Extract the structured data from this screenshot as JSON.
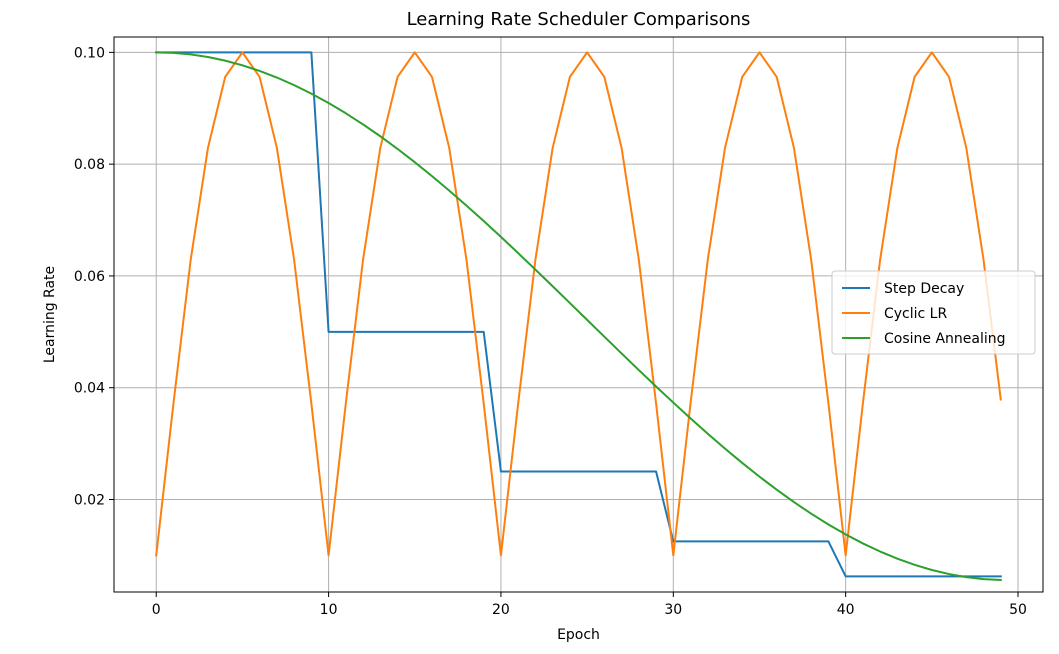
{
  "chart_data": {
    "type": "line",
    "title": "Learning Rate Scheduler Comparisons",
    "xlabel": "Epoch",
    "ylabel": "Learning Rate",
    "xlim": [
      -2.45,
      51.45
    ],
    "ylim": [
      0.00345,
      0.10275
    ],
    "xticks": [
      0,
      10,
      20,
      30,
      40,
      50
    ],
    "xtick_labels": [
      "0",
      "10",
      "20",
      "30",
      "40",
      "50"
    ],
    "yticks": [
      0.02,
      0.04,
      0.06,
      0.08,
      0.1
    ],
    "ytick_labels": [
      "0.02",
      "0.04",
      "0.06",
      "0.08",
      "0.10"
    ],
    "grid": true,
    "legend_position": "center-right",
    "x": [
      0,
      1,
      2,
      3,
      4,
      5,
      6,
      7,
      8,
      9,
      10,
      11,
      12,
      13,
      14,
      15,
      16,
      17,
      18,
      19,
      20,
      21,
      22,
      23,
      24,
      25,
      26,
      27,
      28,
      29,
      30,
      31,
      32,
      33,
      34,
      35,
      36,
      37,
      38,
      39,
      40,
      41,
      42,
      43,
      44,
      45,
      46,
      47,
      48,
      49
    ],
    "series": [
      {
        "name": "Step Decay",
        "color": "#1f77b4",
        "values": [
          0.1,
          0.1,
          0.1,
          0.1,
          0.1,
          0.1,
          0.1,
          0.1,
          0.1,
          0.1,
          0.05,
          0.05,
          0.05,
          0.05,
          0.05,
          0.05,
          0.05,
          0.05,
          0.05,
          0.05,
          0.025,
          0.025,
          0.025,
          0.025,
          0.025,
          0.025,
          0.025,
          0.025,
          0.025,
          0.025,
          0.0125,
          0.0125,
          0.0125,
          0.0125,
          0.0125,
          0.0125,
          0.0125,
          0.0125,
          0.0125,
          0.0125,
          0.00625,
          0.00625,
          0.00625,
          0.00625,
          0.00625,
          0.00625,
          0.00625,
          0.00625,
          0.00625,
          0.00625
        ]
      },
      {
        "name": "Cyclic LR",
        "color": "#ff7f0e",
        "values": [
          0.01,
          0.0372,
          0.0629,
          0.0829,
          0.0956,
          0.1,
          0.0956,
          0.0829,
          0.0629,
          0.0372,
          0.01,
          0.0372,
          0.0629,
          0.0829,
          0.0956,
          0.1,
          0.0956,
          0.0829,
          0.0629,
          0.0372,
          0.01,
          0.0372,
          0.0629,
          0.0829,
          0.0956,
          0.1,
          0.0956,
          0.0829,
          0.0629,
          0.0372,
          0.01,
          0.0372,
          0.0629,
          0.0829,
          0.0956,
          0.1,
          0.0956,
          0.0829,
          0.0629,
          0.0372,
          0.01,
          0.0372,
          0.0629,
          0.0829,
          0.0956,
          0.1,
          0.0956,
          0.0829,
          0.0629,
          0.0379
        ]
      },
      {
        "name": "Cosine Annealing",
        "color": "#2ca02c",
        "values": [
          0.1,
          0.09991,
          0.09963,
          0.09917,
          0.09852,
          0.09769,
          0.09668,
          0.0955,
          0.09414,
          0.09262,
          0.09094,
          0.0891,
          0.08711,
          0.08499,
          0.08273,
          0.08035,
          0.07786,
          0.07527,
          0.07258,
          0.06982,
          0.06698,
          0.06408,
          0.06113,
          0.05815,
          0.05515,
          0.05214,
          0.04913,
          0.04613,
          0.04316,
          0.04022,
          0.03734,
          0.03452,
          0.03177,
          0.02911,
          0.02654,
          0.02409,
          0.02175,
          0.01954,
          0.01746,
          0.01553,
          0.01376,
          0.01214,
          0.01069,
          0.00941,
          0.00831,
          0.00739,
          0.00666,
          0.00612,
          0.00576,
          0.0056
        ]
      }
    ]
  }
}
